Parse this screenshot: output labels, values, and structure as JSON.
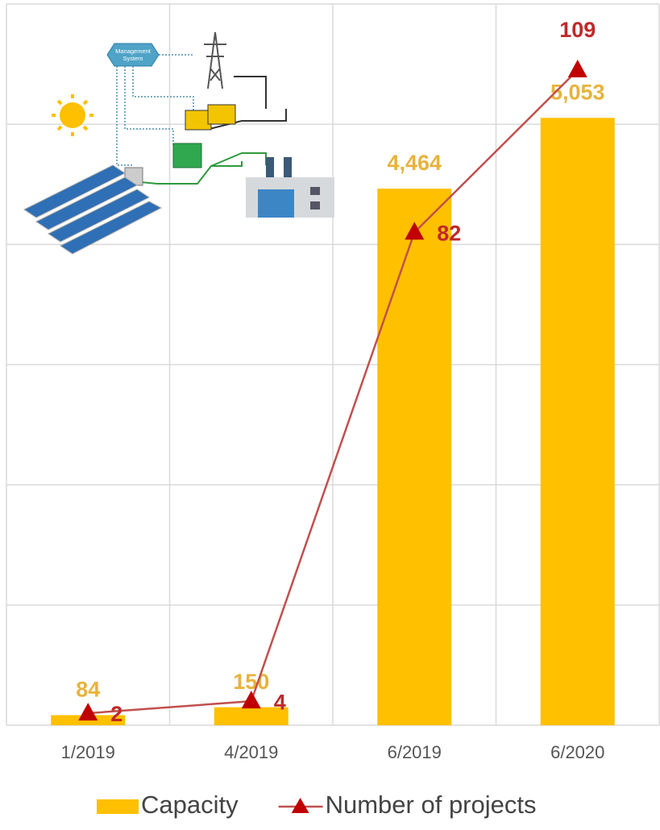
{
  "chart_data": {
    "type": "bar_line",
    "illustration_label": "Management System",
    "categories": [
      "1/2019",
      "4/2019",
      "6/2019",
      "6/2020"
    ],
    "series": [
      {
        "name": "Capacity",
        "type": "bar",
        "color": "#ffc000",
        "label_color": "#e8b33c",
        "values": [
          84,
          150,
          4464,
          5053
        ],
        "value_labels": [
          "84",
          "150",
          "4,464",
          "5,053"
        ]
      },
      {
        "name": "Number of projects",
        "type": "line",
        "axis": "y2",
        "color": "#c0504d",
        "marker_color": "#c00000",
        "label_color": "#c0282a",
        "values": [
          2,
          4,
          82,
          109
        ]
      }
    ],
    "ylim": [
      0,
      6000
    ],
    "yticks": [
      0,
      1000,
      2000,
      3000,
      4000,
      5000,
      6000
    ],
    "y2lim": [
      0,
      120
    ],
    "grid": true,
    "legend": "bottom"
  }
}
